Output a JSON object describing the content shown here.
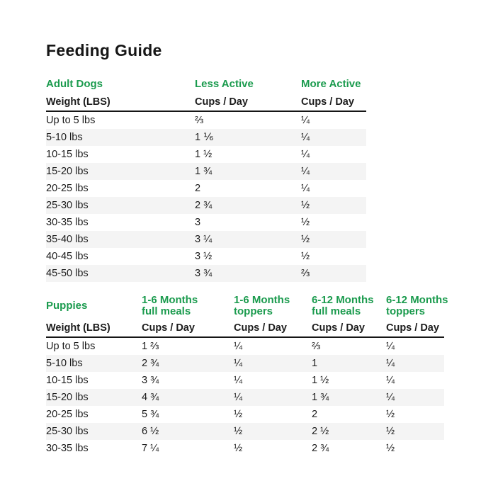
{
  "page": {
    "title": "Feeding Guide"
  },
  "colors": {
    "accent_green": "#1b9b4e",
    "text": "#1c1c1c",
    "stripe": "#f4f4f4"
  },
  "adult_table": {
    "section_label": "Adult Dogs",
    "groups": [
      "Less Active",
      "More Active"
    ],
    "weight_header": "Weight (LBS)",
    "cups_header": "Cups / Day",
    "rows": [
      [
        "Up to 5 lbs",
        "⅔",
        "¼"
      ],
      [
        "5-10 lbs",
        "1 ⅙",
        "¼"
      ],
      [
        "10-15 lbs",
        "1 ½",
        "¼"
      ],
      [
        "15-20 lbs",
        "1 ¾",
        "¼"
      ],
      [
        "20-25 lbs",
        "2",
        "¼"
      ],
      [
        "25-30 lbs",
        "2 ¾",
        "½"
      ],
      [
        "30-35 lbs",
        "3",
        "½"
      ],
      [
        "35-40 lbs",
        "3 ¼",
        "½"
      ],
      [
        "40-45 lbs",
        "3 ½",
        "½"
      ],
      [
        "45-50 lbs",
        "3 ¾",
        "⅔"
      ]
    ]
  },
  "puppy_table": {
    "section_label": "Puppies",
    "groups": [
      {
        "line1": "1-6 Months",
        "line2": "full meals"
      },
      {
        "line1": "1-6 Months",
        "line2": "toppers"
      },
      {
        "line1": "6-12 Months",
        "line2": "full meals"
      },
      {
        "line1": "6-12 Months",
        "line2": "toppers"
      }
    ],
    "weight_header": "Weight (LBS)",
    "cups_header": "Cups / Day",
    "rows": [
      [
        "Up to 5 lbs",
        "1 ⅔",
        "¼",
        "⅔",
        "¼"
      ],
      [
        "5-10 lbs",
        "2 ¾",
        "¼",
        "1",
        "¼"
      ],
      [
        "10-15 lbs",
        "3 ¾",
        "¼",
        "1 ½",
        "¼"
      ],
      [
        "15-20 lbs",
        "4 ¾",
        "¼",
        "1 ¾",
        "¼"
      ],
      [
        "20-25 lbs",
        "5 ¾",
        "½",
        "2",
        "½"
      ],
      [
        "25-30 lbs",
        "6 ½",
        "½",
        "2 ½",
        "½"
      ],
      [
        "30-35 lbs",
        "7 ¼",
        "½",
        "2 ¾",
        "½"
      ]
    ]
  }
}
